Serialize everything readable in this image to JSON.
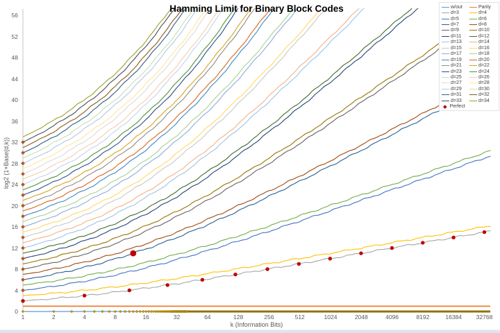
{
  "window": {
    "background": "#FFFFFF",
    "bottom_strip_color": "#DFE3EC"
  },
  "chart_data": {
    "type": "line",
    "title": "Hamming Limit for Binary Block Codes",
    "xlabel": "k (Information Bits)",
    "ylabel": "log2  (1+Base(d,k))",
    "x_scale": "log2",
    "x_range": [
      1,
      32768
    ],
    "ylim": [
      0,
      56
    ],
    "x_ticks": [
      1,
      2,
      4,
      8,
      16,
      32,
      64,
      128,
      256,
      512,
      1024,
      2048,
      4096,
      8192,
      16384,
      32768
    ],
    "y_ticks": [
      0,
      4,
      8,
      12,
      16,
      20,
      24,
      28,
      32,
      36,
      40,
      44,
      48,
      52,
      56
    ],
    "grid": "off",
    "legend_position": "top-right",
    "model": "y(k) = Hamming sphere-packing limit: smallest real r with 2^r = sum_{i=0..t} C(k+r, i), t = floor((d-1)/2); for even d the curve is the (d-1) curve plus one extra parity bit. 'w/out' is constant 0, 'Parity' is constant 1. Every curve starts at (k=1, y=d-1).",
    "series": [
      {
        "label": "w/out",
        "kind": "hline",
        "y": 0,
        "color": "#5B9BD5"
      },
      {
        "label": "Parity",
        "kind": "hline",
        "y": 1,
        "color": "#ED7D31"
      },
      {
        "label": "d=3",
        "kind": "hamming",
        "d": 3,
        "color": "#A6A6A6"
      },
      {
        "label": "d=4",
        "kind": "hamming",
        "d": 4,
        "color": "#FFC000"
      },
      {
        "label": "d=5",
        "kind": "hamming",
        "d": 5,
        "color": "#4472C4"
      },
      {
        "label": "d=6",
        "kind": "hamming",
        "d": 6,
        "color": "#70AD47"
      },
      {
        "label": "d=7",
        "kind": "hamming",
        "d": 7,
        "color": "#255E91"
      },
      {
        "label": "d=8",
        "kind": "hamming",
        "d": 8,
        "color": "#9E480E"
      },
      {
        "label": "d=9",
        "kind": "hamming",
        "d": 9,
        "color": "#636363"
      },
      {
        "label": "d=10",
        "kind": "hamming",
        "d": 10,
        "color": "#997300"
      },
      {
        "label": "d=11",
        "kind": "hamming",
        "d": 11,
        "color": "#264478"
      },
      {
        "label": "d=12",
        "kind": "hamming",
        "d": 12,
        "color": "#43682B"
      },
      {
        "label": "d=13",
        "kind": "hamming",
        "d": 13,
        "color": "#9DC3E6"
      },
      {
        "label": "d=14",
        "kind": "hamming",
        "d": 14,
        "color": "#F4B183"
      },
      {
        "label": "d=15",
        "kind": "hamming",
        "d": 15,
        "color": "#C9C9C9"
      },
      {
        "label": "d=16",
        "kind": "hamming",
        "d": 16,
        "color": "#FFD966"
      },
      {
        "label": "d=17",
        "kind": "hamming",
        "d": 17,
        "color": "#8FAADC"
      },
      {
        "label": "d=18",
        "kind": "hamming",
        "d": 18,
        "color": "#A9D18E"
      },
      {
        "label": "d=19",
        "kind": "hamming",
        "d": 19,
        "color": "#3B87C8"
      },
      {
        "label": "d=20",
        "kind": "hamming",
        "d": 20,
        "color": "#D9661E"
      },
      {
        "label": "d=21",
        "kind": "hamming",
        "d": 21,
        "color": "#8C8C8C"
      },
      {
        "label": "d=22",
        "kind": "hamming",
        "d": 22,
        "color": "#D6A320"
      },
      {
        "label": "d=23",
        "kind": "hamming",
        "d": 23,
        "color": "#2B4D8C"
      },
      {
        "label": "d=24",
        "kind": "hamming",
        "d": 24,
        "color": "#539138"
      },
      {
        "label": "d=25",
        "kind": "hamming",
        "d": 25,
        "color": "#BDD7EE"
      },
      {
        "label": "d=26",
        "kind": "hamming",
        "d": 26,
        "color": "#F8CBAD"
      },
      {
        "label": "d=27",
        "kind": "hamming",
        "d": 27,
        "color": "#DBDBDB"
      },
      {
        "label": "d=28",
        "kind": "hamming",
        "d": 28,
        "color": "#FFE699"
      },
      {
        "label": "d=29",
        "kind": "hamming",
        "d": 29,
        "color": "#B4C7E7"
      },
      {
        "label": "d=30",
        "kind": "hamming",
        "d": 30,
        "color": "#C5E0B3"
      },
      {
        "label": "d=31",
        "kind": "hamming",
        "d": 31,
        "color": "#2F5D8C"
      },
      {
        "label": "d=32",
        "kind": "hamming",
        "d": 32,
        "color": "#8C5A14"
      },
      {
        "label": "d=33",
        "kind": "hamming",
        "d": 33,
        "color": "#44505E"
      },
      {
        "label": "d=34",
        "kind": "hamming",
        "d": 34,
        "color": "#99A126"
      },
      {
        "label": "Perfect",
        "kind": "perfect-markers",
        "color": "#C00000"
      }
    ],
    "perfect_points": {
      "hamming_d3": [
        [
          1,
          2
        ],
        [
          4,
          3
        ],
        [
          11,
          4
        ],
        [
          26,
          5
        ],
        [
          57,
          6
        ],
        [
          120,
          7
        ],
        [
          247,
          8
        ],
        [
          502,
          9
        ],
        [
          1013,
          10
        ],
        [
          2036,
          11
        ],
        [
          4083,
          12
        ],
        [
          8178,
          13
        ],
        [
          16369,
          14
        ],
        [
          32752,
          15
        ]
      ],
      "golay": [
        12,
        11
      ],
      "repetition_k1_y": [
        2,
        4,
        6,
        8,
        10,
        12,
        14,
        16,
        18,
        20,
        22,
        24,
        26,
        28,
        30,
        32
      ],
      "trivial_y0": "diamond markers at y=0 for every integer k from 1 to 32768 (merge into a solid bar as k grows)",
      "marker_colors": {
        "dots": "#C00000",
        "repetition_diamonds": "#C55A11",
        "trivial_diamonds": "#CC9900",
        "trivial_bar": "#8F7300"
      }
    },
    "axis_color": "#C6C6C6",
    "tick_label_color": "#595959"
  }
}
